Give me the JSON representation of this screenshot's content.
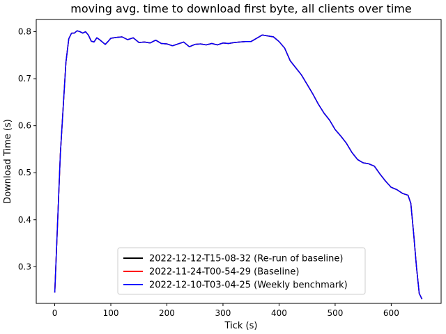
{
  "chart_data": {
    "type": "line",
    "title": "moving avg. time to download first byte, all clients over time",
    "xlabel": "Tick (s)",
    "ylabel": "Download Time (s)",
    "xlim": [
      -33,
      689
    ],
    "ylim": [
      0.222,
      0.826
    ],
    "xticks": [
      0,
      100,
      200,
      300,
      400,
      500,
      600
    ],
    "yticks": [
      0.3,
      0.4,
      0.5,
      0.6,
      0.7,
      0.8
    ],
    "grid": false,
    "legend_position": "lower center",
    "series": [
      {
        "name": "2022-12-12-T15-08-32 (Re-run of baseline)",
        "color": "#000000",
        "x": [
          0,
          10,
          20,
          25,
          30,
          35,
          40,
          45,
          50,
          55,
          60,
          65,
          70,
          75,
          80,
          85,
          90,
          95,
          100,
          110,
          120,
          130,
          140,
          150,
          160,
          170,
          180,
          190,
          200,
          210,
          220,
          230,
          240,
          250,
          260,
          270,
          280,
          290,
          300,
          310,
          320,
          330,
          340,
          350,
          360,
          370,
          380,
          390,
          400,
          410,
          420,
          430,
          440,
          450,
          460,
          470,
          480,
          490,
          500,
          510,
          520,
          530,
          540,
          550,
          560,
          570,
          580,
          590,
          600,
          610,
          620,
          630,
          635,
          640,
          645,
          650,
          655
        ],
        "values": [
          0.245,
          0.54,
          0.735,
          0.785,
          0.797,
          0.797,
          0.802,
          0.8,
          0.797,
          0.8,
          0.793,
          0.78,
          0.778,
          0.787,
          0.783,
          0.778,
          0.773,
          0.779,
          0.786,
          0.788,
          0.789,
          0.783,
          0.787,
          0.777,
          0.778,
          0.776,
          0.782,
          0.775,
          0.774,
          0.77,
          0.774,
          0.778,
          0.768,
          0.773,
          0.774,
          0.772,
          0.775,
          0.772,
          0.776,
          0.775,
          0.777,
          0.778,
          0.779,
          0.779,
          0.786,
          0.793,
          0.791,
          0.789,
          0.779,
          0.765,
          0.738,
          0.723,
          0.708,
          0.688,
          0.668,
          0.646,
          0.627,
          0.612,
          0.592,
          0.578,
          0.563,
          0.543,
          0.528,
          0.521,
          0.519,
          0.514,
          0.497,
          0.482,
          0.469,
          0.464,
          0.456,
          0.452,
          0.435,
          0.37,
          0.3,
          0.243,
          0.231
        ]
      },
      {
        "name": "2022-11-24-T00-54-29 (Baseline)",
        "color": "#ff0000",
        "x": [
          0,
          10,
          20,
          25,
          30,
          35,
          40,
          45,
          50,
          55,
          60,
          65,
          70,
          75,
          80,
          85,
          90,
          95,
          100,
          110,
          120,
          130,
          140,
          150,
          160,
          170,
          180,
          190,
          200,
          210,
          220,
          230,
          240,
          250,
          260,
          270,
          280,
          290,
          300,
          310,
          320,
          330,
          340,
          350,
          360,
          370,
          380,
          390,
          400,
          410,
          420,
          430,
          440,
          450,
          460,
          470,
          480,
          490,
          500,
          510,
          520,
          530,
          540,
          550,
          560,
          570,
          580,
          590,
          600,
          610,
          620,
          630,
          635,
          640,
          645,
          650,
          655
        ],
        "values": [
          0.245,
          0.54,
          0.735,
          0.785,
          0.797,
          0.797,
          0.802,
          0.8,
          0.797,
          0.8,
          0.793,
          0.78,
          0.778,
          0.787,
          0.783,
          0.778,
          0.773,
          0.779,
          0.786,
          0.788,
          0.789,
          0.783,
          0.787,
          0.777,
          0.778,
          0.776,
          0.782,
          0.775,
          0.774,
          0.77,
          0.774,
          0.778,
          0.768,
          0.773,
          0.774,
          0.772,
          0.775,
          0.772,
          0.776,
          0.775,
          0.777,
          0.778,
          0.779,
          0.779,
          0.786,
          0.793,
          0.791,
          0.789,
          0.779,
          0.765,
          0.738,
          0.723,
          0.708,
          0.688,
          0.668,
          0.646,
          0.627,
          0.612,
          0.592,
          0.578,
          0.563,
          0.543,
          0.528,
          0.521,
          0.519,
          0.514,
          0.497,
          0.482,
          0.469,
          0.464,
          0.456,
          0.452,
          0.435,
          0.37,
          0.3,
          0.243,
          0.231
        ]
      },
      {
        "name": "2022-12-10-T03-04-25 (Weekly benchmark)",
        "color": "#0000ff",
        "x": [
          0,
          10,
          20,
          25,
          30,
          35,
          40,
          45,
          50,
          55,
          60,
          65,
          70,
          75,
          80,
          85,
          90,
          95,
          100,
          110,
          120,
          130,
          140,
          150,
          160,
          170,
          180,
          190,
          200,
          210,
          220,
          230,
          240,
          250,
          260,
          270,
          280,
          290,
          300,
          310,
          320,
          330,
          340,
          350,
          360,
          370,
          380,
          390,
          400,
          410,
          420,
          430,
          440,
          450,
          460,
          470,
          480,
          490,
          500,
          510,
          520,
          530,
          540,
          550,
          560,
          570,
          580,
          590,
          600,
          610,
          620,
          630,
          635,
          640,
          645,
          650,
          655
        ],
        "values": [
          0.245,
          0.54,
          0.735,
          0.785,
          0.797,
          0.797,
          0.802,
          0.8,
          0.797,
          0.8,
          0.793,
          0.78,
          0.778,
          0.787,
          0.783,
          0.778,
          0.773,
          0.779,
          0.786,
          0.788,
          0.789,
          0.783,
          0.787,
          0.777,
          0.778,
          0.776,
          0.782,
          0.775,
          0.774,
          0.77,
          0.774,
          0.778,
          0.768,
          0.773,
          0.774,
          0.772,
          0.775,
          0.772,
          0.776,
          0.775,
          0.777,
          0.778,
          0.779,
          0.779,
          0.786,
          0.793,
          0.791,
          0.789,
          0.779,
          0.765,
          0.738,
          0.723,
          0.708,
          0.688,
          0.668,
          0.646,
          0.627,
          0.612,
          0.592,
          0.578,
          0.563,
          0.543,
          0.528,
          0.521,
          0.519,
          0.514,
          0.497,
          0.482,
          0.469,
          0.464,
          0.456,
          0.452,
          0.435,
          0.37,
          0.3,
          0.243,
          0.231
        ]
      }
    ]
  }
}
